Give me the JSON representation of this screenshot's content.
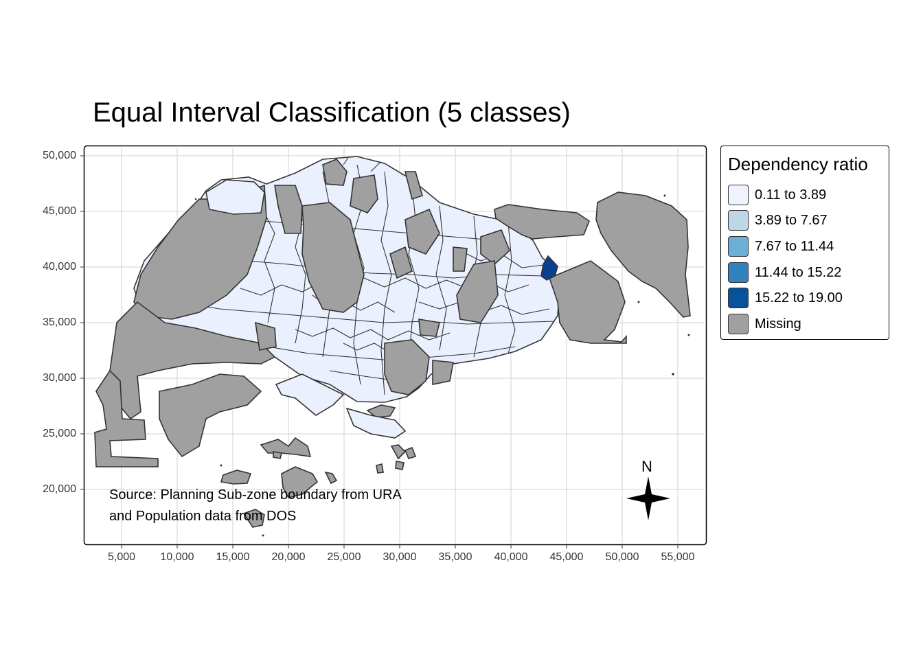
{
  "title": "Equal Interval Classification (5 classes)",
  "axes": {
    "x_ticks": [
      "5,000",
      "10,000",
      "15,000",
      "20,000",
      "25,000",
      "30,000",
      "35,000",
      "40,000",
      "45,000",
      "50,000",
      "55,000"
    ],
    "y_ticks": [
      "50,000",
      "45,000",
      "40,000",
      "35,000",
      "30,000",
      "25,000",
      "20,000"
    ]
  },
  "legend": {
    "title": "Dependency ratio",
    "placement": "outside-right",
    "items": [
      {
        "label": "0.11 to 3.89",
        "color": "#eff3ff"
      },
      {
        "label": "3.89 to 7.67",
        "color": "#bdd7e7"
      },
      {
        "label": "7.67 to 11.44",
        "color": "#6baed6"
      },
      {
        "label": "11.44 to 15.22",
        "color": "#3182bd"
      },
      {
        "label": "15.22 to 19.00",
        "color": "#08519c"
      },
      {
        "label": "Missing",
        "color": "#a0a0a0"
      }
    ]
  },
  "credits": [
    "Source: Planning Sub-zone boundary from URA",
    "and Population data from DOS"
  ],
  "compass": {
    "label": "N"
  },
  "colors": {
    "low": "#eaf0fd",
    "missing": "#a0a0a0",
    "high": "#0b3f8f",
    "border": "#333333"
  }
}
